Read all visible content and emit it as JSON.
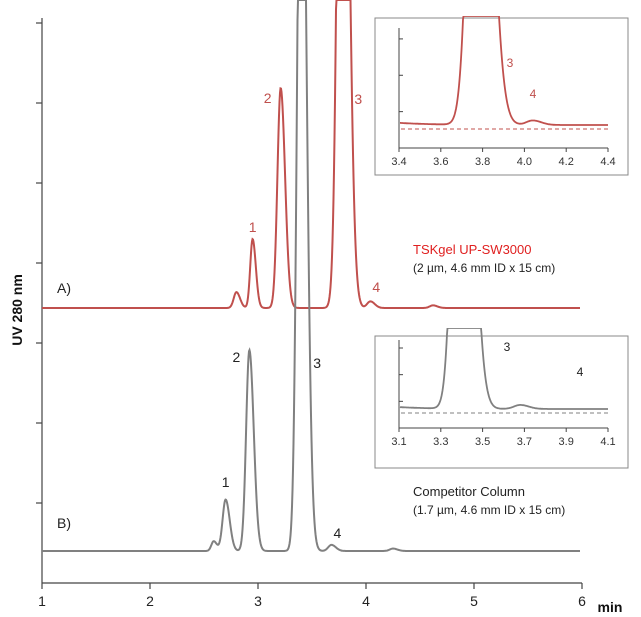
{
  "chart_data": {
    "type": "line",
    "title": "",
    "xlabel": "min",
    "ylabel": "UV 280 nm",
    "xlim": [
      1,
      6
    ],
    "x_ticks": [
      "1",
      "2",
      "3",
      "4",
      "5",
      "6"
    ],
    "grid": false,
    "colors": {
      "A": "#c0504d",
      "B": "#808080"
    },
    "traces": [
      {
        "id": "A",
        "label": "A)",
        "column_name": "TSKgel UP-SW3000",
        "column_desc": "(2 µm, 4.6 mm ID x 15 cm)",
        "baseline": 0,
        "peaks": [
          {
            "label": "",
            "x": 2.8,
            "height": 0.06,
            "width": 0.025
          },
          {
            "label": "1",
            "x": 2.95,
            "height": 0.26,
            "width": 0.022
          },
          {
            "label": "2",
            "x": 3.21,
            "height": 0.83,
            "width": 0.03
          },
          {
            "label": "3",
            "x": 3.78,
            "height": 3.2,
            "width": 0.04
          },
          {
            "label": "4",
            "x": 4.04,
            "height": 0.025,
            "width": 0.03
          },
          {
            "label": "",
            "x": 4.62,
            "height": 0.01,
            "width": 0.03
          }
        ]
      },
      {
        "id": "B",
        "label": "B)",
        "column_name": "Competitor Column",
        "column_desc": "(1.7 µm, 4.6 mm ID x 15 cm)",
        "baseline": 0,
        "peaks": [
          {
            "label": "",
            "x": 2.59,
            "height": 0.04,
            "width": 0.022
          },
          {
            "label": "1",
            "x": 2.7,
            "height": 0.21,
            "width": 0.028
          },
          {
            "label": "2",
            "x": 2.92,
            "height": 0.82,
            "width": 0.03
          },
          {
            "label": "3",
            "x": 3.4,
            "height": 3.5,
            "width": 0.035
          },
          {
            "label": "4",
            "x": 3.68,
            "height": 0.025,
            "width": 0.03
          },
          {
            "label": "",
            "x": 4.25,
            "height": 0.01,
            "width": 0.03
          }
        ]
      }
    ],
    "insets": [
      {
        "trace": "A",
        "xlim": [
          3.4,
          4.4
        ],
        "x_ticks": [
          "3.4",
          "3.6",
          "3.8",
          "4.0",
          "4.2",
          "4.4"
        ],
        "peak_labels": [
          "3",
          "4"
        ]
      },
      {
        "trace": "B",
        "xlim": [
          3.1,
          4.1
        ],
        "x_ticks": [
          "3.1",
          "3.3",
          "3.5",
          "3.7",
          "3.9",
          "4.1"
        ],
        "peak_labels": [
          "3",
          "4"
        ]
      }
    ]
  }
}
